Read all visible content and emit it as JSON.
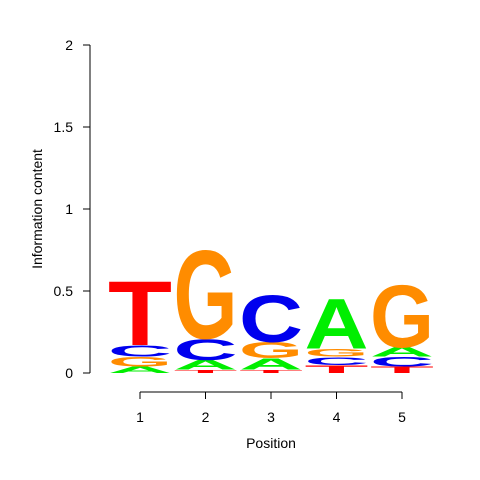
{
  "chart_data": {
    "type": "sequence-logo",
    "xlabel": "Position",
    "ylabel": "Information content",
    "ylim": [
      0,
      2
    ],
    "y_ticks": [
      "0",
      "0.5",
      "1",
      "1.5",
      "2"
    ],
    "positions": [
      "1",
      "2",
      "3",
      "4",
      "5"
    ],
    "letter_colors": {
      "A": "#00ee00",
      "C": "#0000ee",
      "G": "#ff8c00",
      "T": "#ff0000"
    },
    "stacks": [
      [
        {
          "letter": "A",
          "height": 0.04
        },
        {
          "letter": "G",
          "height": 0.06
        },
        {
          "letter": "C",
          "height": 0.07
        },
        {
          "letter": "T",
          "height": 0.4
        }
      ],
      [
        {
          "letter": "T",
          "height": 0.02
        },
        {
          "letter": "A",
          "height": 0.06
        },
        {
          "letter": "C",
          "height": 0.13
        },
        {
          "letter": "G",
          "height": 0.55
        }
      ],
      [
        {
          "letter": "T",
          "height": 0.02
        },
        {
          "letter": "A",
          "height": 0.07
        },
        {
          "letter": "G",
          "height": 0.1
        },
        {
          "letter": "C",
          "height": 0.29
        }
      ],
      [
        {
          "letter": "T",
          "height": 0.05
        },
        {
          "letter": "C",
          "height": 0.05
        },
        {
          "letter": "G",
          "height": 0.05
        },
        {
          "letter": "A",
          "height": 0.31
        }
      ],
      [
        {
          "letter": "T",
          "height": 0.04
        },
        {
          "letter": "C",
          "height": 0.06
        },
        {
          "letter": "A",
          "height": 0.06
        },
        {
          "letter": "G",
          "height": 0.39
        }
      ]
    ]
  }
}
